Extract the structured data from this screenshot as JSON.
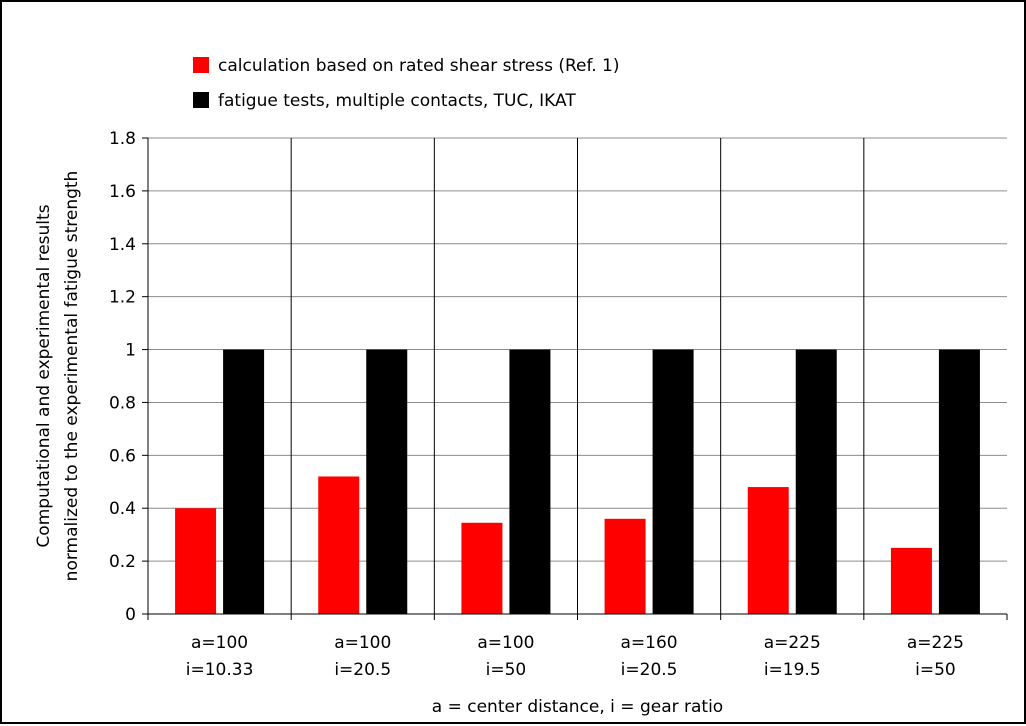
{
  "chart_data": {
    "type": "bar",
    "xlabel": "a = center distance, i = gear ratio",
    "ylabel": [
      "Computational and experimental results",
      "normalized to the experimental fatigue strength"
    ],
    "ylim": [
      0,
      1.8
    ],
    "yticks": [
      "0",
      "0.2",
      "0.4",
      "0.6",
      "0.8",
      "1",
      "1.2",
      "1.4",
      "1.6",
      "1.8"
    ],
    "grid": true,
    "legend_position": "top-left",
    "categories": [
      [
        "a=100",
        "i=10.33"
      ],
      [
        "a=100",
        "i=20.5"
      ],
      [
        "a=100",
        "i=50"
      ],
      [
        "a=160",
        "i=20.5"
      ],
      [
        "a=225",
        "i=19.5"
      ],
      [
        "a=225",
        "i=50"
      ]
    ],
    "series": [
      {
        "name": "calculation based on rated shear stress (Ref. 1)",
        "color": "#ff0000",
        "values": [
          0.4,
          0.52,
          0.345,
          0.36,
          0.48,
          0.25
        ]
      },
      {
        "name": "fatigue tests, multiple contacts, TUC, IKAT",
        "color": "#000000",
        "values": [
          1,
          1,
          1,
          1,
          1,
          1
        ]
      }
    ]
  }
}
